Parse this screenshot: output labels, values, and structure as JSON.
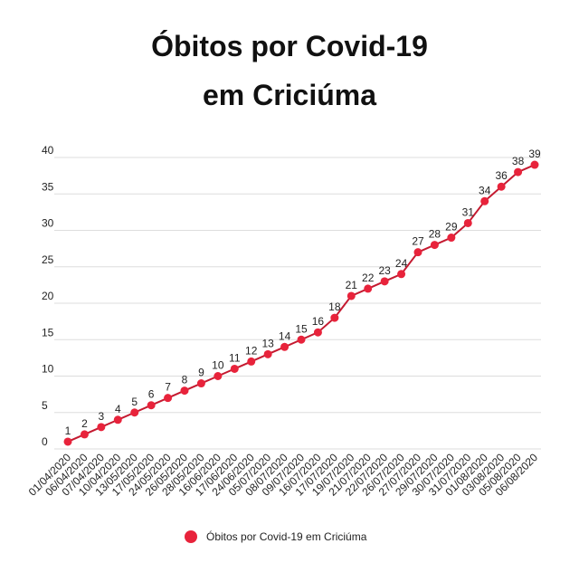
{
  "chart_data": {
    "type": "line",
    "title": [
      "Óbitos por Covid-19",
      "em Criciúma"
    ],
    "categories": [
      "01/04/2020",
      "06/04/2020",
      "07/04/2020",
      "10/04/2020",
      "13/05/2020",
      "17/05/2020",
      "24/05/2020",
      "26/05/2020",
      "28/05/2020",
      "16/06/2020",
      "17/06/2020",
      "24/06/2020",
      "05/07/2020",
      "08/07/2020",
      "09/07/2020",
      "16/07/2020",
      "17/07/2020",
      "19/07/2020",
      "21/07/2020",
      "22/07/2020",
      "26/07/2020",
      "27/07/2020",
      "29/07/2020",
      "30/07/2020",
      "31/07/2020",
      "01/08/2020",
      "03/08/2020",
      "05/08/2020",
      "06/08/2020"
    ],
    "series": [
      {
        "name": "Óbitos por Covid-19 em Criciúma",
        "color": "#e8233b",
        "line_color": "#c41a30",
        "values": [
          1,
          2,
          3,
          4,
          5,
          6,
          7,
          8,
          9,
          10,
          11,
          12,
          13,
          14,
          15,
          16,
          18,
          21,
          22,
          23,
          24,
          27,
          28,
          29,
          31,
          34,
          36,
          38,
          39
        ]
      }
    ],
    "ylim": [
      0,
      40
    ],
    "yticks": [
      0,
      5,
      10,
      15,
      20,
      25,
      30,
      35,
      40
    ],
    "grid": true,
    "legend": "bottom"
  }
}
